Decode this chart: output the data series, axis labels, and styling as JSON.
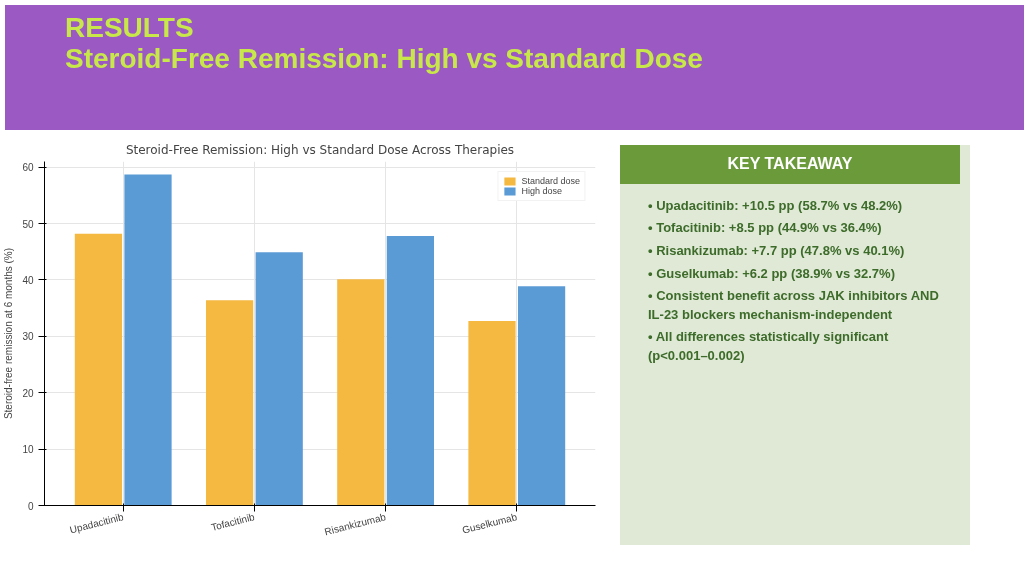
{
  "chart_data": [
    {
      "type": "other",
      "title": "RESULTS",
      "subtitle": "Steroid-Free Remission: High vs Standard Dose"
    },
    {
      "type": "bar",
      "title": "Steroid-Free Remission: High vs Standard Dose Across Therapies",
      "categories": [
        "Upadacitinib",
        "Tofacitinib",
        "Risankizumab",
        "Guselkumab"
      ],
      "series": [
        {
          "name": "Standard dose",
          "color": "#f5b942",
          "values": [
            48.2,
            36.4,
            40.1,
            32.7
          ]
        },
        {
          "name": "High dose",
          "color": "#5b9bd5",
          "values": [
            58.7,
            44.9,
            47.8,
            38.9
          ]
        }
      ],
      "ylabel": "Steroid-free remission at 6 months (%)",
      "ylim": [
        0,
        61
      ],
      "yticks": [
        0,
        10,
        20,
        30,
        40,
        50,
        60
      ],
      "grid": true,
      "legend": "top right"
    },
    {
      "type": "other",
      "title": "KEY TAKEAWAY",
      "annotations": [
        "• Upadacitinib: +10.5 pp (58.7% vs 48.2%)",
        "• Tofacitinib: +8.5 pp (44.9% vs 36.4%)",
        "• Risankizumab: +7.7 pp (47.8% vs 40.1%)",
        "• Guselkumab: +6.2 pp (38.9% vs 32.7%)",
        "• Consistent benefit across JAK inhibitors AND IL-23 blockers mechanism-independent",
        "• All differences statistically significant (p<0.001–0.002)"
      ]
    }
  ]
}
